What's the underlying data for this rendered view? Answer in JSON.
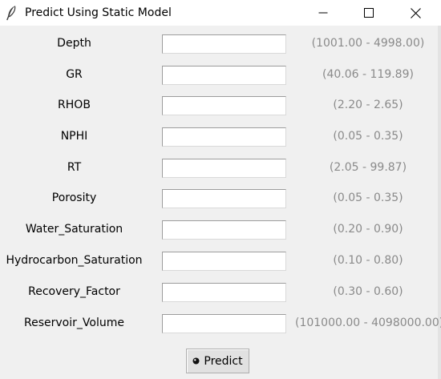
{
  "window": {
    "title": "Predict Using Static Model",
    "icon": "feather-icon",
    "controls": [
      "minimize-icon",
      "maximize-icon",
      "close-icon"
    ]
  },
  "fields": [
    {
      "label": "Depth",
      "value": "",
      "range": "(1001.00 - 4998.00)"
    },
    {
      "label": "GR",
      "value": "",
      "range": "(40.06 - 119.89)"
    },
    {
      "label": "RHOB",
      "value": "",
      "range": "(2.20 - 2.65)"
    },
    {
      "label": "NPHI",
      "value": "",
      "range": "(0.05 - 0.35)"
    },
    {
      "label": "RT",
      "value": "",
      "range": "(2.05 - 99.87)"
    },
    {
      "label": "Porosity",
      "value": "",
      "range": "(0.05 - 0.35)"
    },
    {
      "label": "Water_Saturation",
      "value": "",
      "range": "(0.20 - 0.90)"
    },
    {
      "label": "Hydrocarbon_Saturation",
      "value": "",
      "range": "(0.10 - 0.80)"
    },
    {
      "label": "Recovery_Factor",
      "value": "",
      "range": "(0.30 - 0.60)"
    },
    {
      "label": "Reservoir_Volume",
      "value": "",
      "range": "(101000.00 - 4098000.00)"
    }
  ],
  "predict_button": {
    "label": "Predict",
    "icon": "bullet-icon"
  }
}
